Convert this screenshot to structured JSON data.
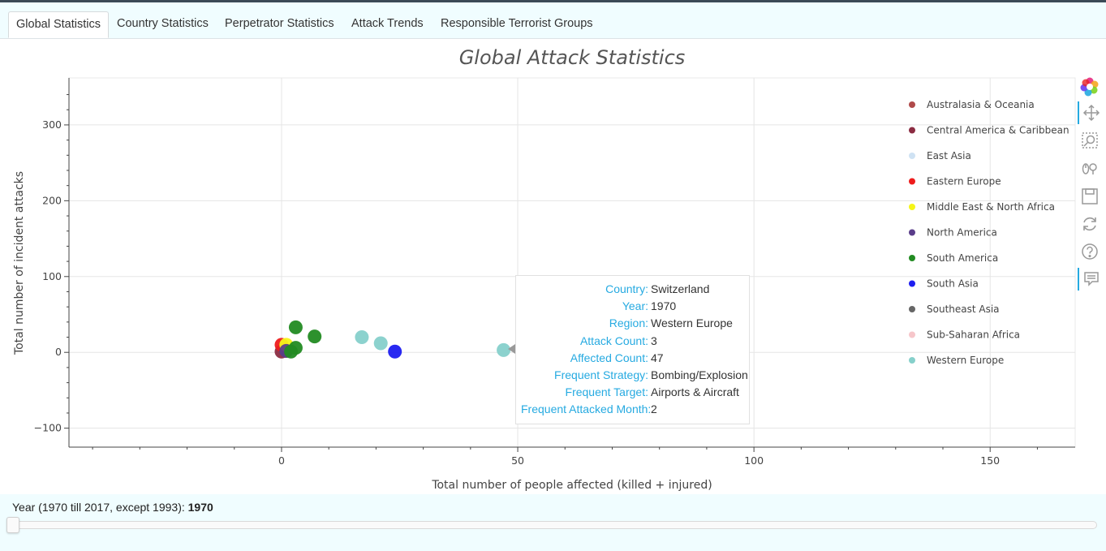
{
  "tabs": [
    {
      "label": "Global Statistics",
      "active": true
    },
    {
      "label": "Country Statistics",
      "active": false
    },
    {
      "label": "Perpetrator Statistics",
      "active": false
    },
    {
      "label": "Attack Trends",
      "active": false
    },
    {
      "label": "Responsible Terrorist Groups",
      "active": false
    }
  ],
  "toolbar": {
    "icons": [
      "bokeh-logo-icon",
      "pan-icon",
      "box-zoom-icon",
      "wheel-zoom-icon",
      "save-icon",
      "reset-icon",
      "help-icon",
      "hover-icon"
    ]
  },
  "tooltip": {
    "rows": [
      {
        "key": "Country:",
        "value": "Switzerland"
      },
      {
        "key": "Year:",
        "value": "1970"
      },
      {
        "key": "Region:",
        "value": "Western Europe"
      },
      {
        "key": "Attack Count:",
        "value": "3"
      },
      {
        "key": "Affected Count:",
        "value": "47"
      },
      {
        "key": "Frequent Strategy:",
        "value": "Bombing/Explosion"
      },
      {
        "key": "Frequent Target:",
        "value": "Airports & Aircraft"
      },
      {
        "key": "Frequent Attacked Month:",
        "value": "2"
      }
    ]
  },
  "slider": {
    "label": "Year (1970 till 2017, except 1993):",
    "value": "1970",
    "min": 1970,
    "max": 2017,
    "current": 1970
  },
  "chart_data": {
    "type": "scatter",
    "title": "Global Attack Statistics",
    "xlabel": "Total number of people affected (killed + injured)",
    "ylabel": "Total number of incident attacks",
    "xlim": [
      -45,
      168
    ],
    "ylim": [
      -125,
      362
    ],
    "xticks": [
      0,
      50,
      100,
      150
    ],
    "yticks": [
      -100,
      0,
      100,
      200,
      300
    ],
    "grid": true,
    "legend_position": "top-right",
    "series": [
      {
        "name": "Australasia & Oceania",
        "color": "#b04a4a",
        "points": []
      },
      {
        "name": "Central America & Caribbean",
        "color": "#8b2c42",
        "points": [
          {
            "x": 0,
            "y": 1
          },
          {
            "x": 1,
            "y": 2
          }
        ]
      },
      {
        "name": "East Asia",
        "color": "#cfe2f3",
        "points": []
      },
      {
        "name": "Eastern Europe",
        "color": "#ee1c1c",
        "points": [
          {
            "x": 0,
            "y": 10
          }
        ]
      },
      {
        "name": "Middle East & North Africa",
        "color": "#f5f518",
        "points": [
          {
            "x": 1,
            "y": 10
          }
        ]
      },
      {
        "name": "North America",
        "color": "#5a3d8a",
        "points": [
          {
            "x": 1,
            "y": 2
          }
        ]
      },
      {
        "name": "South America",
        "color": "#228b22",
        "points": [
          {
            "x": 3,
            "y": 33
          },
          {
            "x": 7,
            "y": 21
          },
          {
            "x": 3,
            "y": 6
          },
          {
            "x": 2,
            "y": 1
          }
        ]
      },
      {
        "name": "South Asia",
        "color": "#1e1ef0",
        "points": [
          {
            "x": 24,
            "y": 1
          }
        ]
      },
      {
        "name": "Southeast Asia",
        "color": "#666666",
        "points": []
      },
      {
        "name": "Sub-Saharan Africa",
        "color": "#f6c6ca",
        "points": []
      },
      {
        "name": "Western Europe",
        "color": "#86d0cb",
        "points": [
          {
            "x": 17,
            "y": 20
          },
          {
            "x": 21,
            "y": 12
          },
          {
            "x": 47,
            "y": 3
          }
        ]
      }
    ]
  }
}
